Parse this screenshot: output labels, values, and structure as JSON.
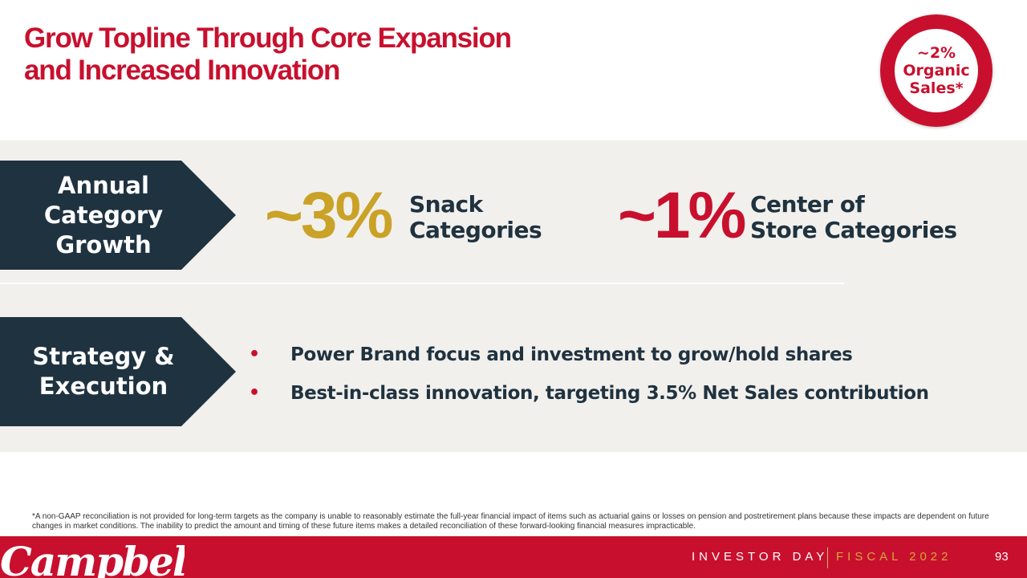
{
  "title": {
    "line1": "Grow Topline Through Core Expansion",
    "line2": "and Increased Innovation"
  },
  "badge": {
    "line1": "~2%",
    "line2": "Organic",
    "line3": "Sales*"
  },
  "category_growth": {
    "chevron": {
      "line1": "Annual",
      "line2": "Category",
      "line3": "Growth"
    },
    "snack": {
      "value": "~3%",
      "label_line1": "Snack",
      "label_line2": "Categories"
    },
    "center": {
      "value": "~1%",
      "label_line1": "Center of",
      "label_line2": "Store Categories"
    }
  },
  "strategy": {
    "chevron": {
      "line1": "Strategy &",
      "line2": "Execution"
    },
    "bullet_char": "•",
    "bullets": [
      "Power Brand focus and investment to grow/hold shares",
      "Best-in-class innovation, targeting 3.5% Net Sales contribution"
    ]
  },
  "footnote": "*A non-GAAP reconciliation is not provided for long-term targets as the company is unable to reasonably estimate the full-year financial impact of items such as actuarial gains or losses on pension and postretirement plans because these impacts are dependent on future changes in market conditions. The inability to predict the amount and timing of these future items makes a detailed reconciliation of these forward-looking financial measures impracticable.",
  "footer": {
    "logo": "Campbell's",
    "investor_day": "INVESTOR DAY",
    "fiscal": "FISCAL 2022",
    "page_number": "93"
  },
  "colors": {
    "brand_red": "#c8102e",
    "navy": "#1f3240",
    "gold": "#c9a227",
    "panel": "#f2f0ec"
  }
}
